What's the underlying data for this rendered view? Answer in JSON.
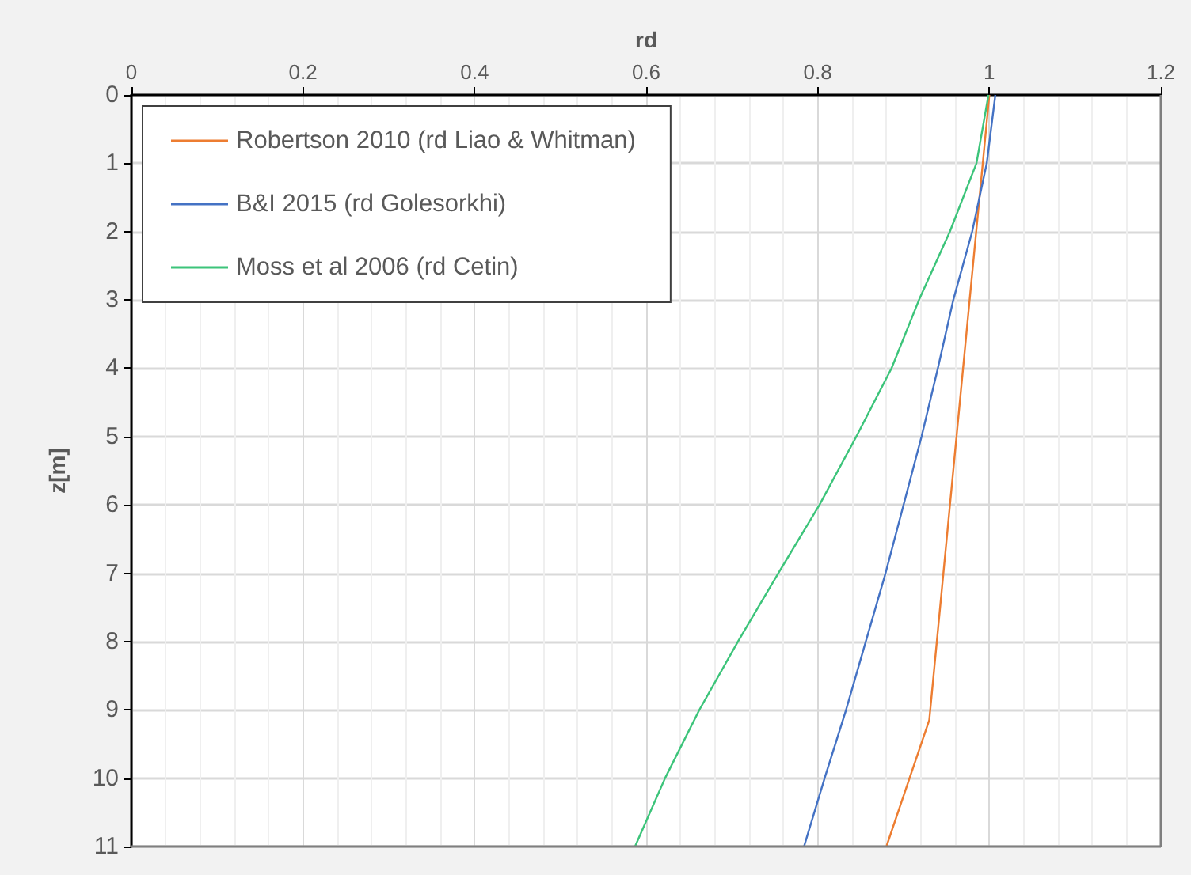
{
  "chart_data": {
    "type": "line",
    "xlabel": "rd",
    "ylabel": "z[m]",
    "xlim": [
      0,
      1.2
    ],
    "xticks": [
      0,
      0.2,
      0.4,
      0.6,
      0.8,
      1,
      1.2
    ],
    "ylim": [
      11,
      0
    ],
    "yticks": [
      0,
      1,
      2,
      3,
      4,
      5,
      6,
      7,
      8,
      9,
      10,
      11
    ],
    "grid": true,
    "legend": "top left",
    "marker": "none",
    "line_style": "solid",
    "series": [
      {
        "name": "Robertson 2010 (rd Liao & Whitman)",
        "color": "#ed7d31",
        "x": [
          1.0,
          0.93,
          0.907,
          0.88
        ],
        "values": [
          0,
          9.15,
          10,
          11
        ]
      },
      {
        "name": "B&I 2015 (rd Golesorkhi)",
        "color": "#4472c4",
        "x": [
          1.007,
          0.997,
          0.98,
          0.958,
          0.94,
          0.921,
          0.9,
          0.879,
          0.856,
          0.833,
          0.808,
          0.784
        ],
        "values": [
          0,
          1,
          2,
          3,
          4,
          5,
          6,
          7,
          8,
          9,
          10,
          11
        ]
      },
      {
        "name": "Moss et al 2006 (rd Cetin)",
        "color": "#3cc47a",
        "x": [
          0.999,
          0.985,
          0.954,
          0.918,
          0.886,
          0.845,
          0.802,
          0.754,
          0.707,
          0.662,
          0.622,
          0.587
        ],
        "values": [
          0,
          1,
          2,
          3,
          4,
          5,
          6,
          7,
          8,
          9,
          10,
          11
        ]
      }
    ]
  }
}
